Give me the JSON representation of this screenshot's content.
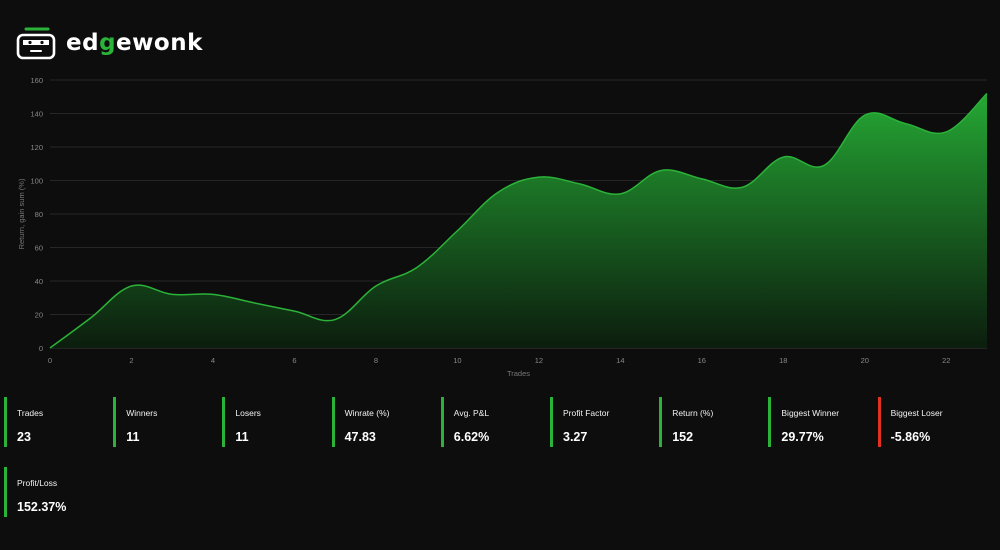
{
  "brand": {
    "name_prefix": "ed",
    "name_accent": "g",
    "name_suffix": "ewonk",
    "logo": "edgewonk-mascot-logo",
    "accent_color": "#2bb339",
    "negative_color": "#e0321f"
  },
  "chart_data": {
    "type": "area",
    "title": "",
    "xlabel": "Trades",
    "ylabel": "Return, gain sum (%)",
    "xlim": [
      0,
      23
    ],
    "ylim": [
      0,
      160
    ],
    "x_ticks": [
      0,
      2,
      4,
      6,
      8,
      10,
      12,
      14,
      16,
      18,
      20,
      22
    ],
    "y_ticks": [
      0,
      20,
      40,
      60,
      80,
      100,
      120,
      140,
      160
    ],
    "grid": "horizontal",
    "series": [
      {
        "color": "#2bb339",
        "x": [
          0,
          1,
          2,
          3,
          4,
          5,
          6,
          7,
          8,
          9,
          10,
          11,
          12,
          13,
          14,
          15,
          16,
          17,
          18,
          19,
          20,
          21,
          22,
          23
        ],
        "y": [
          0,
          18,
          37,
          32,
          32,
          27,
          22,
          17,
          37,
          48,
          70,
          93,
          102,
          98,
          92,
          106,
          101,
          96,
          114,
          109,
          139,
          134,
          129,
          152
        ]
      }
    ]
  },
  "stats": [
    {
      "label": "Trades",
      "value": "23",
      "negative": false
    },
    {
      "label": "Winners",
      "value": "11",
      "negative": false
    },
    {
      "label": "Losers",
      "value": "11",
      "negative": false
    },
    {
      "label": "Winrate (%)",
      "value": "47.83",
      "negative": false
    },
    {
      "label": "Avg. P&L",
      "value": "6.62%",
      "negative": false
    },
    {
      "label": "Profit Factor",
      "value": "3.27",
      "negative": false
    },
    {
      "label": "Return (%)",
      "value": "152",
      "negative": false
    },
    {
      "label": "Biggest Winner",
      "value": "29.77%",
      "negative": false
    },
    {
      "label": "Biggest Loser",
      "value": "-5.86%",
      "negative": true
    },
    {
      "label": "Profit/Loss",
      "value": "152.37%",
      "negative": false
    }
  ]
}
